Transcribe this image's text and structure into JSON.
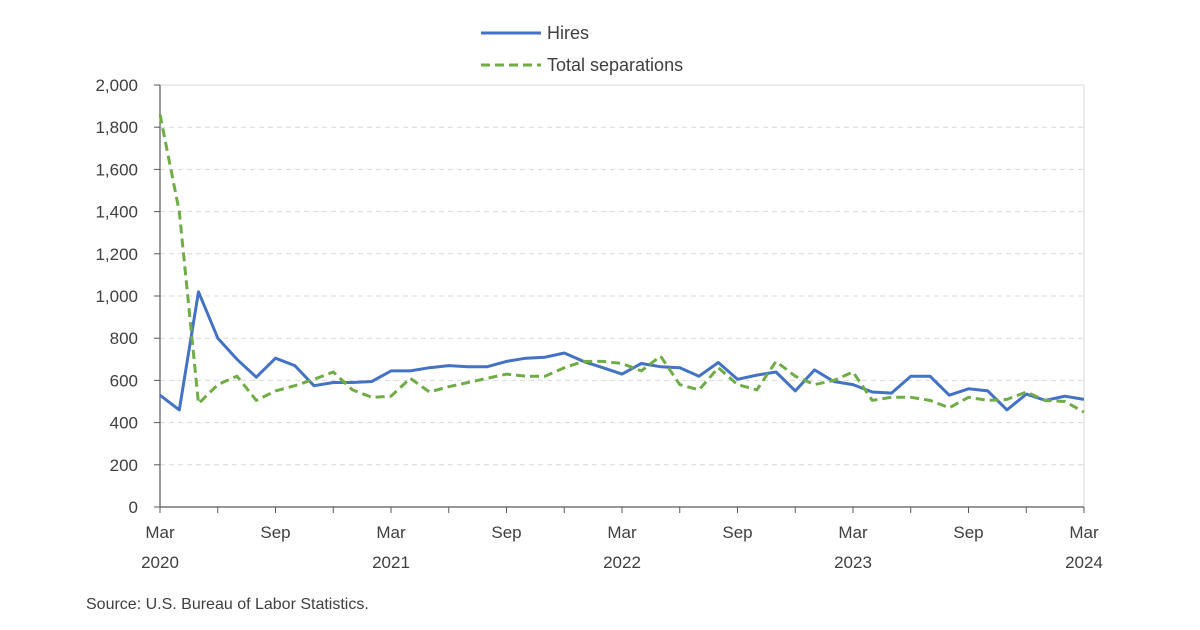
{
  "chart_data": {
    "type": "line",
    "title": "",
    "xlabel": "",
    "ylabel": "",
    "ylim": [
      0,
      2000
    ],
    "yticks": [
      0,
      200,
      400,
      600,
      800,
      1000,
      1200,
      1400,
      1600,
      1800,
      2000
    ],
    "ytick_labels": [
      "0",
      "200",
      "400",
      "600",
      "800",
      "1,000",
      "1,200",
      "1,400",
      "1,600",
      "1,800",
      "2,000"
    ],
    "grid": true,
    "legend_position": "top-center",
    "x_months": [
      "2020-03",
      "2020-04",
      "2020-05",
      "2020-06",
      "2020-07",
      "2020-08",
      "2020-09",
      "2020-10",
      "2020-11",
      "2020-12",
      "2021-01",
      "2021-02",
      "2021-03",
      "2021-04",
      "2021-05",
      "2021-06",
      "2021-07",
      "2021-08",
      "2021-09",
      "2021-10",
      "2021-11",
      "2021-12",
      "2022-01",
      "2022-02",
      "2022-03",
      "2022-04",
      "2022-05",
      "2022-06",
      "2022-07",
      "2022-08",
      "2022-09",
      "2022-10",
      "2022-11",
      "2022-12",
      "2023-01",
      "2023-02",
      "2023-03",
      "2023-04",
      "2023-05",
      "2023-06",
      "2023-07",
      "2023-08",
      "2023-09",
      "2023-10",
      "2023-11",
      "2023-12",
      "2024-01",
      "2024-02",
      "2024-03"
    ],
    "x_ticks": [
      {
        "month": "2020-03",
        "label": "Mar",
        "year": "2020"
      },
      {
        "month": "2020-09",
        "label": "Sep",
        "year": ""
      },
      {
        "month": "2021-03",
        "label": "Mar",
        "year": "2021"
      },
      {
        "month": "2021-09",
        "label": "Sep",
        "year": ""
      },
      {
        "month": "2022-03",
        "label": "Mar",
        "year": "2022"
      },
      {
        "month": "2022-09",
        "label": "Sep",
        "year": ""
      },
      {
        "month": "2023-03",
        "label": "Mar",
        "year": "2023"
      },
      {
        "month": "2023-09",
        "label": "Sep",
        "year": ""
      },
      {
        "month": "2024-03",
        "label": "Mar",
        "year": "2024"
      }
    ],
    "series": [
      {
        "name": "Hires",
        "color": "#4472C4",
        "dash": "solid",
        "values": [
          530,
          460,
          1020,
          800,
          700,
          615,
          705,
          670,
          575,
          590,
          590,
          595,
          645,
          645,
          660,
          670,
          665,
          665,
          690,
          705,
          710,
          730,
          690,
          660,
          630,
          680,
          665,
          660,
          620,
          685,
          605,
          625,
          640,
          550,
          650,
          595,
          580,
          545,
          540,
          620,
          620,
          530,
          560,
          550,
          460,
          535,
          505,
          525,
          510
        ]
      },
      {
        "name": "Total separations",
        "color": "#70AD47",
        "dash": "dashed",
        "values": [
          1860,
          1400,
          490,
          580,
          620,
          505,
          550,
          575,
          605,
          640,
          555,
          520,
          525,
          610,
          545,
          570,
          590,
          610,
          630,
          620,
          620,
          660,
          690,
          690,
          680,
          645,
          715,
          580,
          555,
          660,
          580,
          555,
          690,
          620,
          580,
          600,
          640,
          505,
          520,
          520,
          505,
          470,
          520,
          505,
          510,
          545,
          505,
          500,
          450
        ]
      }
    ]
  },
  "source": "Source: U.S. Bureau of Labor Statistics."
}
